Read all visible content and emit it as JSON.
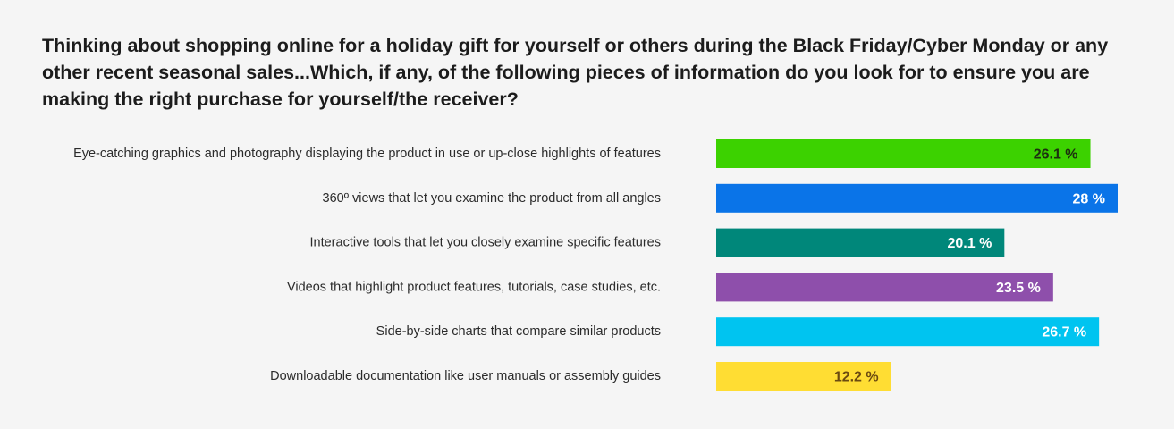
{
  "chart_data": {
    "type": "bar",
    "orientation": "horizontal",
    "title": "Thinking about shopping online for a holiday gift for yourself or others during the Black Friday/Cyber Monday or any other recent seasonal sales...Which, if any, of the following pieces of information do you look for to ensure you are making the right purchase for yourself/the receiver?",
    "categories": [
      "Eye-catching graphics and photography displaying the product in use or up-close highlights of features",
      "360º views that let you examine the product from all angles",
      "Interactive tools that let you closely examine specific features",
      "Videos that highlight product features, tutorials, case studies, etc.",
      "Side-by-side charts that compare similar products",
      "Downloadable documentation like user manuals or assembly guides"
    ],
    "values": [
      26.1,
      28,
      20.1,
      23.5,
      26.7,
      12.2
    ],
    "value_labels": [
      "26.1 %",
      "28 %",
      "20.1 %",
      "23.5 %",
      "26.7 %",
      "12.2 %"
    ],
    "bar_colors": [
      "#3cd200",
      "#0a74e8",
      "#00877a",
      "#8e4fab",
      "#00c4f0",
      "#ffdd33"
    ],
    "value_label_colors": [
      "#1c2e10",
      "#ffffff",
      "#ffffff",
      "#ffffff",
      "#ffffff",
      "#6b4a10"
    ],
    "xlim": [
      0,
      28
    ],
    "grid": false,
    "legend": "none"
  }
}
